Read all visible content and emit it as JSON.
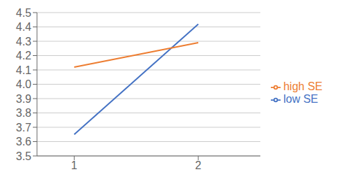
{
  "chart_data": {
    "type": "line",
    "x": [
      1,
      2
    ],
    "series": [
      {
        "name": "low SE",
        "color": "#4472C4",
        "values": [
          3.65,
          4.42
        ]
      },
      {
        "name": "high SE",
        "color": "#ED7D31",
        "values": [
          4.12,
          4.29
        ]
      }
    ],
    "xlim": [
      0.7,
      2.5
    ],
    "ylim": [
      3.5,
      4.5
    ],
    "xticks": [
      1,
      2
    ],
    "yticks": [
      3.5,
      3.6,
      3.7,
      3.8,
      3.9,
      {
        "value": 4.0,
        "label": "4.0"
      },
      4.1,
      4.2,
      4.3,
      4.4,
      4.5
    ],
    "grid": true,
    "legend": "right"
  }
}
